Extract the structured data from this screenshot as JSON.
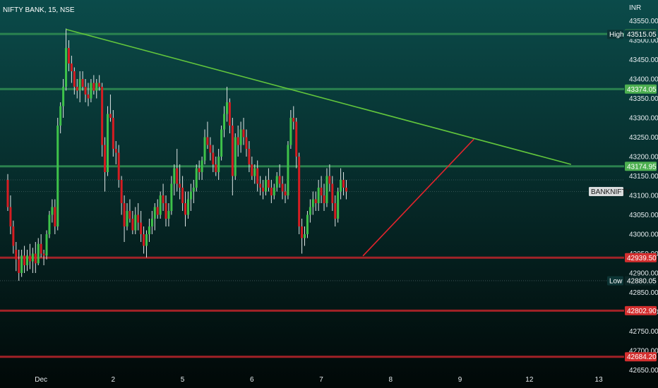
{
  "header": {
    "title": "NIFTY BANK, 15, NSE",
    "currency": "INR"
  },
  "colors": {
    "bg_top": "#0b4b4a",
    "bg_bottom": "#010807",
    "up": "#3ec24a",
    "down": "#d51d22",
    "wick": "#dfe6e6",
    "resistance": "#2e8a52",
    "support": "#b3242a",
    "trend_down": "#62c63c",
    "trend_up": "#e4242c",
    "tag_green": "#4caf50",
    "tag_red": "#d32f2f",
    "tag_grey": "#d9dcdd"
  },
  "chart_data": {
    "type": "candlestick",
    "title": "NIFTY BANK, 15, NSE",
    "ylabel": "INR",
    "ylim": [
      42640,
      43565
    ],
    "y_ticks": [
      43550,
      43500,
      43450,
      43400,
      43350,
      43300,
      43250,
      43200,
      43150,
      43100,
      43050,
      43000,
      42950,
      42900,
      42850,
      42800,
      42750,
      42700,
      42650
    ],
    "y_tick_labels": [
      "43550.00",
      "43500.00",
      "43450.00",
      "43400.00",
      "43350.00",
      "43300.00",
      "43250.00",
      "43200.00",
      "43150.00",
      "43100.00",
      "43050.00",
      "43000.00",
      "42950.00",
      "42900.00",
      "42850.00",
      "42800.00",
      "42750.00",
      "42700.00",
      "42650.00"
    ],
    "x_ticks": [
      {
        "label": "Dec",
        "bar": 12
      },
      {
        "label": "2",
        "bar": 38
      },
      {
        "label": "5",
        "bar": 63
      },
      {
        "label": "6",
        "bar": 88
      },
      {
        "label": "7",
        "bar": 113
      },
      {
        "label": "8",
        "bar": 138
      },
      {
        "label": "9",
        "bar": 163
      },
      {
        "label": "12",
        "bar": 188
      },
      {
        "label": "13",
        "bar": 213
      }
    ],
    "horizontal_levels": [
      {
        "value": 43516.15,
        "label": "43516.15",
        "kind": "resistance"
      },
      {
        "value": 43374.05,
        "label": "43374.05",
        "kind": "resistance"
      },
      {
        "value": 43174.95,
        "label": "43174.95",
        "kind": "resistance"
      },
      {
        "value": 42939.5,
        "label": "42939.50",
        "kind": "support"
      },
      {
        "value": 42802.9,
        "label": "42802.90",
        "kind": "support"
      },
      {
        "value": 42684.2,
        "label": "42684.20",
        "kind": "support"
      }
    ],
    "high": {
      "label": "High",
      "value": 43515.05,
      "value_label": "43515.05"
    },
    "low": {
      "label": "Low",
      "value": 42880.05,
      "value_label": "42880.05"
    },
    "symbol_tag": {
      "label": "BANKNIFTY",
      "value": 43110
    },
    "ref_line_dotted": 43140,
    "trendlines": [
      {
        "kind": "descending",
        "from": {
          "bar": 21,
          "price": 43528
        },
        "to": {
          "bar": 203,
          "price": 43180
        }
      },
      {
        "kind": "ascending",
        "from": {
          "bar": 128,
          "price": 42944
        },
        "to": {
          "bar": 168,
          "price": 43245
        }
      }
    ],
    "candles": [
      [
        43140,
        43155,
        43060,
        43070
      ],
      [
        43070,
        43100,
        43000,
        43020
      ],
      [
        43020,
        43035,
        42950,
        42970
      ],
      [
        42960,
        42980,
        42905,
        42935
      ],
      [
        42935,
        42960,
        42880,
        42900
      ],
      [
        42900,
        42960,
        42890,
        42945
      ],
      [
        42945,
        42970,
        42900,
        42920
      ],
      [
        42920,
        42960,
        42905,
        42945
      ],
      [
        42945,
        42975,
        42910,
        42930
      ],
      [
        42930,
        42965,
        42900,
        42950
      ],
      [
        42950,
        42980,
        42900,
        42925
      ],
      [
        42925,
        42990,
        42920,
        42975
      ],
      [
        42975,
        43000,
        42940,
        42950
      ],
      [
        42950,
        42960,
        42920,
        42945
      ],
      [
        42945,
        43010,
        42935,
        43000
      ],
      [
        43000,
        43060,
        42990,
        43050
      ],
      [
        43050,
        43090,
        43030,
        43070
      ],
      [
        43070,
        43090,
        43000,
        43020
      ],
      [
        43020,
        43300,
        43010,
        43280
      ],
      [
        43280,
        43340,
        43260,
        43330
      ],
      [
        43330,
        43400,
        43300,
        43380
      ],
      [
        43380,
        43530,
        43370,
        43480
      ],
      [
        43480,
        43500,
        43420,
        43440
      ],
      [
        43440,
        43460,
        43390,
        43420
      ],
      [
        43420,
        43430,
        43360,
        43380
      ],
      [
        43380,
        43400,
        43350,
        43370
      ],
      [
        43370,
        43420,
        43340,
        43400
      ],
      [
        43400,
        43420,
        43370,
        43380
      ],
      [
        43380,
        43400,
        43340,
        43360
      ],
      [
        43360,
        43390,
        43330,
        43350
      ],
      [
        43350,
        43400,
        43340,
        43390
      ],
      [
        43390,
        43410,
        43360,
        43370
      ],
      [
        43370,
        43400,
        43350,
        43390
      ],
      [
        43390,
        43410,
        43370,
        43380
      ],
      [
        43380,
        43390,
        43200,
        43230
      ],
      [
        43230,
        43250,
        43110,
        43160
      ],
      [
        43160,
        43330,
        43150,
        43310
      ],
      [
        43310,
        43360,
        43290,
        43300
      ],
      [
        43300,
        43320,
        43200,
        43220
      ],
      [
        43220,
        43240,
        43180,
        43210
      ],
      [
        43210,
        43230,
        43120,
        43140
      ],
      [
        43140,
        43150,
        43050,
        43080
      ],
      [
        43080,
        43100,
        42980,
        43020
      ],
      [
        43020,
        43080,
        43010,
        43060
      ],
      [
        43060,
        43090,
        43030,
        43040
      ],
      [
        43040,
        43060,
        43000,
        43010
      ],
      [
        43010,
        43070,
        43000,
        43050
      ],
      [
        43050,
        43080,
        43010,
        43030
      ],
      [
        43030,
        43060,
        42980,
        43000
      ],
      [
        43000,
        43020,
        42950,
        42970
      ],
      [
        42970,
        43010,
        42940,
        43000
      ],
      [
        43000,
        43040,
        42980,
        43020
      ],
      [
        43020,
        43060,
        43000,
        43040
      ],
      [
        43040,
        43080,
        43010,
        43070
      ],
      [
        43070,
        43090,
        43040,
        43050
      ],
      [
        43050,
        43110,
        43040,
        43100
      ],
      [
        43100,
        43130,
        43060,
        43080
      ],
      [
        43080,
        43100,
        43020,
        43040
      ],
      [
        43040,
        43080,
        43020,
        43060
      ],
      [
        43060,
        43150,
        43050,
        43130
      ],
      [
        43130,
        43180,
        43100,
        43170
      ],
      [
        43170,
        43220,
        43110,
        43130
      ],
      [
        43130,
        43180,
        43090,
        43120
      ],
      [
        43120,
        43150,
        43060,
        43080
      ],
      [
        43080,
        43110,
        43020,
        43050
      ],
      [
        43050,
        43110,
        43040,
        43090
      ],
      [
        43090,
        43130,
        43060,
        43110
      ],
      [
        43110,
        43140,
        43080,
        43120
      ],
      [
        43120,
        43180,
        43110,
        43170
      ],
      [
        43170,
        43190,
        43140,
        43160
      ],
      [
        43160,
        43200,
        43140,
        43190
      ],
      [
        43190,
        43270,
        43180,
        43250
      ],
      [
        43250,
        43290,
        43220,
        43230
      ],
      [
        43230,
        43250,
        43190,
        43210
      ],
      [
        43210,
        43230,
        43160,
        43180
      ],
      [
        43180,
        43200,
        43150,
        43160
      ],
      [
        43160,
        43220,
        43140,
        43200
      ],
      [
        43200,
        43280,
        43190,
        43270
      ],
      [
        43270,
        43330,
        43250,
        43310
      ],
      [
        43310,
        43380,
        43290,
        43340
      ],
      [
        43340,
        43350,
        43260,
        43280
      ],
      [
        43280,
        43300,
        43100,
        43150
      ],
      [
        43150,
        43260,
        43140,
        43250
      ],
      [
        43250,
        43280,
        43200,
        43230
      ],
      [
        43230,
        43290,
        43210,
        43270
      ],
      [
        43270,
        43300,
        43230,
        43250
      ],
      [
        43250,
        43270,
        43200,
        43220
      ],
      [
        43220,
        43240,
        43160,
        43180
      ],
      [
        43180,
        43200,
        43140,
        43150
      ],
      [
        43150,
        43180,
        43130,
        43170
      ],
      [
        43170,
        43190,
        43110,
        43130
      ],
      [
        43130,
        43150,
        43100,
        43120
      ],
      [
        43120,
        43140,
        43090,
        43110
      ],
      [
        43110,
        43150,
        43100,
        43140
      ],
      [
        43140,
        43170,
        43110,
        43120
      ],
      [
        43120,
        43140,
        43080,
        43100
      ],
      [
        43100,
        43130,
        43090,
        43120
      ],
      [
        43120,
        43160,
        43110,
        43150
      ],
      [
        43150,
        43180,
        43120,
        43130
      ],
      [
        43130,
        43150,
        43090,
        43110
      ],
      [
        43110,
        43130,
        43080,
        43100
      ],
      [
        43100,
        43240,
        43090,
        43230
      ],
      [
        43230,
        43320,
        43220,
        43300
      ],
      [
        43300,
        43330,
        43270,
        43290
      ],
      [
        43290,
        43300,
        43170,
        43200
      ],
      [
        43200,
        43210,
        43000,
        43020
      ],
      [
        43020,
        43040,
        42950,
        42990
      ],
      [
        42990,
        43020,
        42970,
        43000
      ],
      [
        43000,
        43060,
        42990,
        43050
      ],
      [
        43050,
        43090,
        43030,
        43070
      ],
      [
        43070,
        43110,
        43050,
        43090
      ],
      [
        43090,
        43110,
        43060,
        43080
      ],
      [
        43080,
        43140,
        43060,
        43120
      ],
      [
        43120,
        43150,
        43080,
        43100
      ],
      [
        43100,
        43130,
        43060,
        43080
      ],
      [
        43080,
        43170,
        43070,
        43150
      ],
      [
        43150,
        43180,
        43110,
        43130
      ],
      [
        43130,
        43150,
        43060,
        43080
      ],
      [
        43080,
        43100,
        43020,
        43040
      ],
      [
        43040,
        43120,
        43030,
        43110
      ],
      [
        43110,
        43170,
        43090,
        43140
      ],
      [
        43140,
        43160,
        43100,
        43120
      ],
      [
        43120,
        43140,
        43090,
        43110
      ]
    ]
  }
}
